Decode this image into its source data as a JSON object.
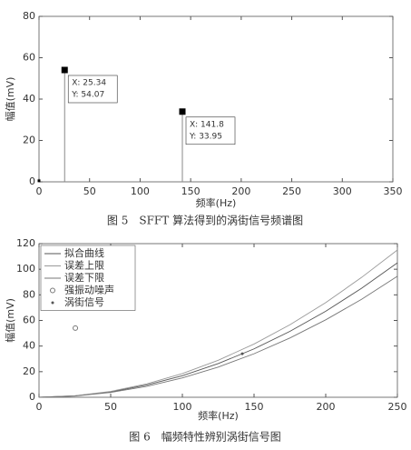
{
  "chart_data": [
    {
      "type": "stem",
      "caption": "图 5　SFFT 算法得到的涡街信号频谱图",
      "xlabel": "频率(Hz)",
      "ylabel": "幅值(mV)",
      "xlim": [
        0,
        350
      ],
      "xticks": [
        0,
        50,
        100,
        150,
        200,
        250,
        300,
        350
      ],
      "ylim": [
        0,
        80
      ],
      "yticks": [
        0,
        20,
        40,
        60,
        80
      ],
      "series": [
        {
          "color": "#000000",
          "x": [
            0,
            25.34,
            141.8
          ],
          "values": [
            0.5,
            54.07,
            33.95
          ],
          "datatips": [
            null,
            {
              "x": "X: 25.34",
              "y": "Y: 54.07"
            },
            {
              "x": "X: 141.8",
              "y": "Y: 33.95"
            }
          ]
        }
      ]
    },
    {
      "type": "line",
      "caption": "图 6　幅频特性辨别涡街信号图",
      "xlabel": "频率(Hz)",
      "ylabel": "幅值(mV)",
      "xlim": [
        0,
        250
      ],
      "xticks": [
        0,
        50,
        100,
        150,
        200,
        250
      ],
      "ylim": [
        0,
        120
      ],
      "yticks": [
        0,
        20,
        40,
        60,
        80,
        100,
        120
      ],
      "legend": "upper left",
      "series": [
        {
          "name": "拟合曲线",
          "style": "line",
          "color": "#555555",
          "x": [
            0,
            25,
            50,
            75,
            100,
            125,
            150,
            175,
            200,
            225,
            250
          ],
          "values": [
            0,
            1.1,
            4.2,
            9.5,
            16.8,
            26.3,
            37.8,
            51.5,
            67.2,
            85.1,
            105
          ]
        },
        {
          "name": "误差上限",
          "style": "line",
          "color": "#999999",
          "x": [
            0,
            25,
            50,
            75,
            100,
            125,
            150,
            175,
            200,
            225,
            250
          ],
          "values": [
            0,
            1.2,
            4.6,
            10.4,
            18.5,
            28.9,
            41.6,
            56.6,
            73.9,
            93.6,
            115
          ]
        },
        {
          "name": "误差下限",
          "style": "line",
          "color": "#777777",
          "x": [
            0,
            25,
            50,
            75,
            100,
            125,
            150,
            175,
            200,
            225,
            250
          ],
          "values": [
            0,
            0.9,
            3.8,
            8.5,
            15.1,
            23.6,
            34,
            46.3,
            60.5,
            76.5,
            94.5
          ]
        },
        {
          "name": "强振动噪声",
          "style": "circle",
          "color": "#777777",
          "x": [
            25.34
          ],
          "values": [
            54.07
          ]
        },
        {
          "name": "涡街信号",
          "style": "dot",
          "color": "#555555",
          "x": [
            141.8
          ],
          "values": [
            33.95
          ]
        }
      ]
    }
  ]
}
